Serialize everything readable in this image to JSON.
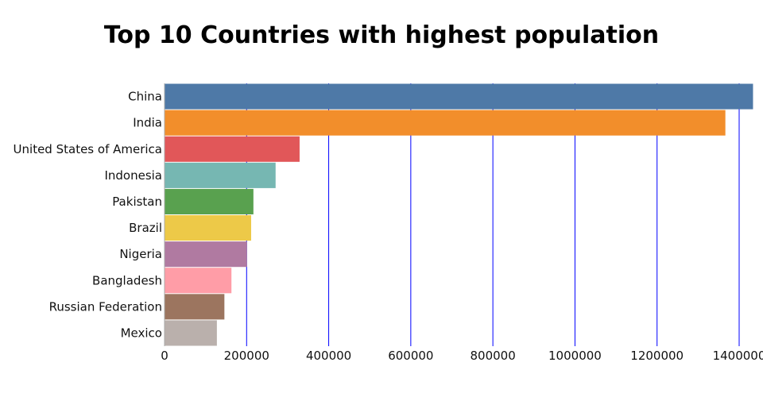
{
  "chart_data": {
    "type": "bar",
    "orientation": "horizontal",
    "title": "Top 10 Countries with highest population",
    "xlabel": "",
    "ylabel": "",
    "xlim": [
      0,
      1400000
    ],
    "grid": true,
    "categories": [
      "China",
      "India",
      "United States of America",
      "Indonesia",
      "Pakistan",
      "Brazil",
      "Nigeria",
      "Bangladesh",
      "Russian Federation",
      "Mexico"
    ],
    "values": [
      1433784,
      1366418,
      329065,
      270626,
      216565,
      211050,
      200964,
      163046,
      145872,
      127576
    ],
    "colors": [
      "#4e79a7",
      "#f28e2b",
      "#e15759",
      "#76b7b2",
      "#59a14f",
      "#edc948",
      "#b07aa1",
      "#ff9da7",
      "#9c755f",
      "#bab0ac"
    ],
    "x_ticks": [
      "0",
      "200000",
      "400000",
      "600000",
      "800000",
      "1000000",
      "1200000",
      "1400000"
    ],
    "x_tick_values": [
      0,
      200000,
      400000,
      600000,
      800000,
      1000000,
      1200000,
      1400000
    ],
    "grid_color": "#0000ff",
    "axis_color": "#aaaaaa"
  }
}
